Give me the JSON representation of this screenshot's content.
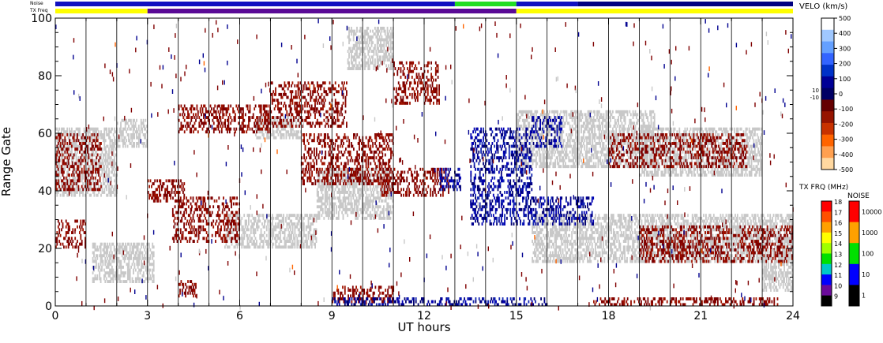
{
  "chart_data": {
    "type": "heatmap",
    "xlabel": "UT hours",
    "ylabel": "Range Gate",
    "x_ticks": [
      "0",
      "3",
      "6",
      "9",
      "12",
      "15",
      "18",
      "21",
      "24"
    ],
    "y_ticks": [
      "0",
      "20",
      "40",
      "60",
      "80",
      "100"
    ],
    "xlim": [
      0,
      24
    ],
    "ylim": [
      0,
      100
    ],
    "grid": "vertical lines every hour",
    "ground_scatter_color": "#c8c8c8",
    "top_bars": {
      "noise_label": "Noise",
      "txfreq_label": "TX Freq",
      "txfreq_segments": [
        {
          "start": 0,
          "end": 3,
          "color": "#ffff00"
        },
        {
          "start": 3,
          "end": 15,
          "color": "#5a0a96"
        },
        {
          "start": 15,
          "end": 24,
          "color": "#ffff00"
        }
      ],
      "noise_segments": [
        {
          "start": 0,
          "end": 13,
          "color": "#1010c0"
        },
        {
          "start": 13,
          "end": 15,
          "color": "#22dd22"
        },
        {
          "start": 15,
          "end": 17,
          "color": "#1010c0"
        },
        {
          "start": 17,
          "end": 24,
          "color": "#000080"
        }
      ]
    },
    "scatter_regions": [
      {
        "kind": "ground",
        "x0": 0.0,
        "x1": 2.0,
        "y0": 38,
        "y1": 62
      },
      {
        "kind": "ground",
        "x0": 1.2,
        "x1": 3.2,
        "y0": 8,
        "y1": 22
      },
      {
        "kind": "ground",
        "x0": 2.0,
        "x1": 3.0,
        "y0": 55,
        "y1": 65
      },
      {
        "kind": "ground",
        "x0": 5.5,
        "x1": 8.5,
        "y0": 20,
        "y1": 32
      },
      {
        "kind": "ground",
        "x0": 6.5,
        "x1": 8.0,
        "y0": 58,
        "y1": 66
      },
      {
        "kind": "ground",
        "x0": 8.5,
        "x1": 11.0,
        "y0": 30,
        "y1": 48
      },
      {
        "kind": "ground",
        "x0": 9.5,
        "x1": 11.0,
        "y0": 82,
        "y1": 97
      },
      {
        "kind": "ground",
        "x0": 15.0,
        "x1": 19.5,
        "y0": 48,
        "y1": 68
      },
      {
        "kind": "ground",
        "x0": 15.5,
        "x1": 24.0,
        "y0": 15,
        "y1": 32
      },
      {
        "kind": "ground",
        "x0": 19.0,
        "x1": 23.0,
        "y0": 45,
        "y1": 62
      },
      {
        "kind": "ground",
        "x0": 23.0,
        "x1": 24.0,
        "y0": 5,
        "y1": 18
      },
      {
        "kind": "neg",
        "x0": 0.0,
        "x1": 1.5,
        "y0": 40,
        "y1": 60
      },
      {
        "kind": "neg",
        "x0": 0.0,
        "x1": 1.0,
        "y0": 20,
        "y1": 30
      },
      {
        "kind": "neg",
        "x0": 3.0,
        "x1": 4.2,
        "y0": 36,
        "y1": 44
      },
      {
        "kind": "neg",
        "x0": 4.0,
        "x1": 7.0,
        "y0": 60,
        "y1": 70
      },
      {
        "kind": "neg",
        "x0": 3.8,
        "x1": 6.0,
        "y0": 22,
        "y1": 38
      },
      {
        "kind": "neg",
        "x0": 7.0,
        "x1": 9.5,
        "y0": 62,
        "y1": 78
      },
      {
        "kind": "neg",
        "x0": 8.0,
        "x1": 11.0,
        "y0": 42,
        "y1": 60
      },
      {
        "kind": "neg",
        "x0": 10.5,
        "x1": 12.8,
        "y0": 38,
        "y1": 48
      },
      {
        "kind": "neg",
        "x0": 11.0,
        "x1": 12.5,
        "y0": 70,
        "y1": 85
      },
      {
        "kind": "neg",
        "x0": 9.0,
        "x1": 11.0,
        "y0": 1,
        "y1": 7
      },
      {
        "kind": "neg",
        "x0": 4.0,
        "x1": 4.6,
        "y0": 3,
        "y1": 9
      },
      {
        "kind": "neg",
        "x0": 17.5,
        "x1": 23.5,
        "y0": 0,
        "y1": 3
      },
      {
        "kind": "neg",
        "x0": 18.0,
        "x1": 22.5,
        "y0": 48,
        "y1": 60
      },
      {
        "kind": "neg",
        "x0": 19.0,
        "x1": 24.0,
        "y0": 15,
        "y1": 28
      },
      {
        "kind": "pos",
        "x0": 13.5,
        "x1": 15.5,
        "y0": 28,
        "y1": 62
      },
      {
        "kind": "pos",
        "x0": 12.5,
        "x1": 13.2,
        "y0": 40,
        "y1": 48
      },
      {
        "kind": "pos",
        "x0": 9.0,
        "x1": 16.0,
        "y0": 0,
        "y1": 3
      },
      {
        "kind": "pos",
        "x0": 15.5,
        "x1": 17.5,
        "y0": 28,
        "y1": 38
      },
      {
        "kind": "pos",
        "x0": 15.5,
        "x1": 16.5,
        "y0": 55,
        "y1": 66
      }
    ]
  },
  "colorbar_velocity": {
    "title": "VELO (km/s)",
    "labels": [
      "500",
      "400",
      "300",
      "200",
      "100",
      "0",
      "-100",
      "-200",
      "-300",
      "-400",
      "-500"
    ],
    "inner_labels": [
      "10",
      "-10"
    ],
    "colors": [
      "#ffffff",
      "#a0c8ff",
      "#64a0ff",
      "#3264ff",
      "#0032c8",
      "#000096",
      "#000064",
      "#640000",
      "#961400",
      "#c83200",
      "#ff6400",
      "#ffa050",
      "#ffd8a0"
    ]
  },
  "colorbar_txfreq": {
    "title": "TX FRQ (MHz)",
    "labels": [
      "18",
      "17",
      "16",
      "15",
      "14",
      "13",
      "12",
      "11",
      "10",
      "9"
    ],
    "colors": [
      "#ff0000",
      "#ff5000",
      "#ffa000",
      "#ffff00",
      "#a0ff00",
      "#00e000",
      "#00c8c8",
      "#0000ff",
      "#6a0a9a",
      "#000000"
    ]
  },
  "colorbar_noise": {
    "title": "NOISE",
    "labels": [
      "10000",
      "1000",
      "100",
      "10",
      "1"
    ],
    "colors": [
      "#ff0000",
      "#ffa000",
      "#00e000",
      "#0000ff",
      "#000000"
    ]
  }
}
